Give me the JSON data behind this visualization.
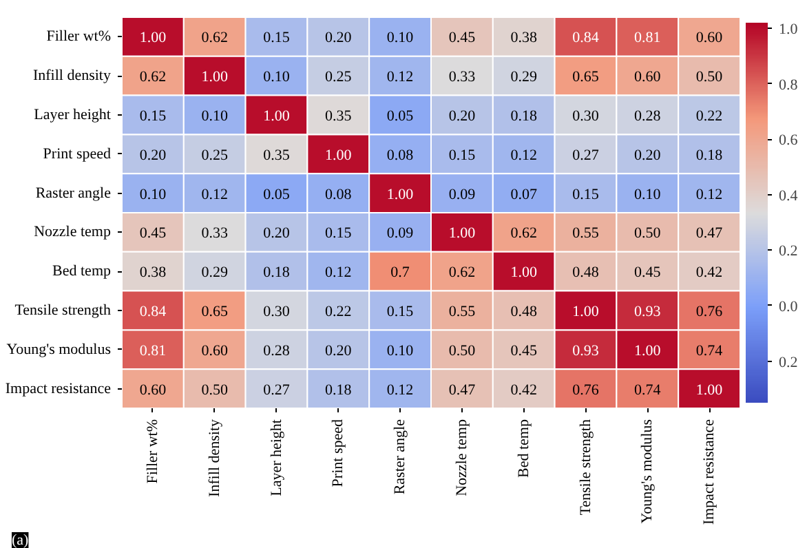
{
  "chart_data": {
    "type": "heatmap",
    "categories": [
      "Filler wt%",
      "Infill density",
      "Layer height",
      "Print speed",
      "Raster angle",
      "Nozzle temp",
      "Bed temp",
      "Tensile strength",
      "Young's modulus",
      "Impact resistance"
    ],
    "y_categories": [
      "Filler wt%",
      "Infill density",
      "Layer height",
      "Print speed",
      "Raster angle",
      "Nozzle temp",
      "Bed temp",
      "Tensile strength",
      "Young's modulus",
      "Impact resistance"
    ],
    "cells": [
      [
        1.0,
        0.62,
        0.15,
        0.2,
        0.1,
        0.45,
        0.38,
        0.84,
        0.81,
        0.6
      ],
      [
        0.62,
        1.0,
        0.1,
        0.25,
        0.12,
        0.33,
        0.29,
        0.65,
        0.6,
        0.5
      ],
      [
        0.15,
        0.1,
        1.0,
        0.35,
        0.05,
        0.2,
        0.18,
        0.3,
        0.28,
        0.22
      ],
      [
        0.2,
        0.25,
        0.35,
        1.0,
        0.08,
        0.15,
        0.12,
        0.27,
        0.2,
        0.18
      ],
      [
        0.1,
        0.12,
        0.05,
        0.08,
        1.0,
        0.09,
        0.07,
        0.15,
        0.1,
        0.12
      ],
      [
        0.45,
        0.33,
        0.2,
        0.15,
        0.09,
        1.0,
        0.62,
        0.55,
        0.5,
        0.47
      ],
      [
        0.38,
        0.29,
        0.18,
        0.12,
        0.7,
        0.62,
        1.0,
        0.48,
        0.45,
        0.42
      ],
      [
        0.84,
        0.65,
        0.3,
        0.22,
        0.15,
        0.55,
        0.48,
        1.0,
        0.93,
        0.76
      ],
      [
        0.81,
        0.6,
        0.28,
        0.2,
        0.1,
        0.5,
        0.45,
        0.93,
        1.0,
        0.74
      ],
      [
        0.6,
        0.5,
        0.27,
        0.18,
        0.12,
        0.47,
        0.42,
        0.76,
        0.74,
        1.0
      ]
    ],
    "cell_labels": [
      [
        "1.00",
        "0.62",
        "0.15",
        "0.20",
        "0.10",
        "0.45",
        "0.38",
        "0.84",
        "0.81",
        "0.60"
      ],
      [
        "0.62",
        "1.00",
        "0.10",
        "0.25",
        "0.12",
        "0.33",
        "0.29",
        "0.65",
        "0.60",
        "0.50"
      ],
      [
        "0.15",
        "0.10",
        "1.00",
        "0.35",
        "0.05",
        "0.20",
        "0.18",
        "0.30",
        "0.28",
        "0.22"
      ],
      [
        "0.20",
        "0.25",
        "0.35",
        "1.00",
        "0.08",
        "0.15",
        "0.12",
        "0.27",
        "0.20",
        "0.18"
      ],
      [
        "0.10",
        "0.12",
        "0.05",
        "0.08",
        "1.00",
        "0.09",
        "0.07",
        "0.15",
        "0.10",
        "0.12"
      ],
      [
        "0.45",
        "0.33",
        "0.20",
        "0.15",
        "0.09",
        "1.00",
        "0.62",
        "0.55",
        "0.50",
        "0.47"
      ],
      [
        "0.38",
        "0.29",
        "0.18",
        "0.12",
        "0.7",
        "0.62",
        "1.00",
        "0.48",
        "0.45",
        "0.42"
      ],
      [
        "0.84",
        "0.65",
        "0.30",
        "0.22",
        "0.15",
        "0.55",
        "0.48",
        "1.00",
        "0.93",
        "0.76"
      ],
      [
        "0.81",
        "0.60",
        "0.28",
        "0.20",
        "0.10",
        "0.50",
        "0.45",
        "0.93",
        "1.00",
        "0.74"
      ],
      [
        "0.60",
        "0.50",
        "0.27",
        "0.18",
        "0.12",
        "0.47",
        "0.42",
        "0.76",
        "0.74",
        "1.00"
      ]
    ],
    "clim": [
      -0.35,
      1.02
    ],
    "cticks": [
      {
        "value": -0.2,
        "label": "0.2"
      },
      {
        "value": 0,
        "label": "0.0"
      },
      0.2,
      0.4,
      0.6,
      0.8,
      {
        "value": 1,
        "label": "1.0"
      }
    ],
    "annotations": [
      "(a)"
    ]
  }
}
